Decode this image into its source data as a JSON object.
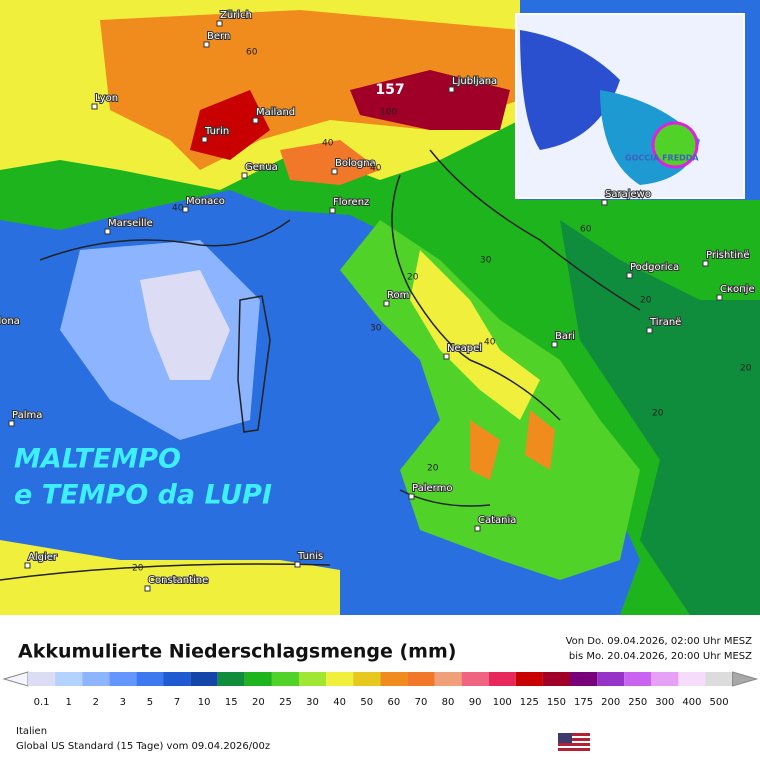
{
  "map": {
    "cities": [
      "Zürich",
      "Bern",
      "Lyon",
      "Mailand",
      "Turin",
      "Genua",
      "Monaco",
      "Marseille",
      "Bologna",
      "Florenz",
      "Ljubljana",
      "Sarajewo",
      "Podgorica",
      "Prishtinë",
      "Скопје",
      "Tiranë",
      "Rom",
      "Bari",
      "Neapel",
      "Palermo",
      "Catania",
      "Palma",
      "Barcelona",
      "Algier",
      "Constantine",
      "Tunis"
    ],
    "max_value": 157,
    "contour_labels": [
      60,
      100,
      40,
      40,
      40,
      20,
      30,
      40,
      30,
      20,
      20,
      20,
      20,
      60,
      20
    ],
    "headline": [
      "MALTEMPO",
      "e TEMPO da LUPI"
    ],
    "inset_label": "GOCCIA FREDDA"
  },
  "legend": {
    "title": "Akkumulierte Niederschlagsmenge (mm)",
    "period": [
      "Von Do. 09.04.2026, 02:00 Uhr MESZ",
      "bis Mo. 20.04.2026, 20:00 Uhr MESZ"
    ],
    "levels": [
      0.1,
      1,
      2,
      3,
      5,
      7,
      10,
      15,
      20,
      25,
      30,
      40,
      50,
      60,
      70,
      80,
      90,
      100,
      125,
      150,
      175,
      200,
      250,
      300,
      400,
      500
    ],
    "colors": [
      "#dcdcf5",
      "#b4d2ff",
      "#8cb4ff",
      "#6496ff",
      "#3c78f0",
      "#1e5ad2",
      "#1446aa",
      "#0f8c3c",
      "#1eb41e",
      "#50d228",
      "#a0e632",
      "#f0f03c",
      "#e6c81e",
      "#f08c1e",
      "#f07828",
      "#f0a078",
      "#f06482",
      "#e6285a",
      "#c80000",
      "#a00028",
      "#780078",
      "#9632c8",
      "#c864f0",
      "#e6a0f5",
      "#f5dcfa",
      "#dcdcdc"
    ]
  },
  "footer": {
    "region": "Italien",
    "model": "Global US Standard (15 Tage) vom 09.04.2026/00z"
  }
}
